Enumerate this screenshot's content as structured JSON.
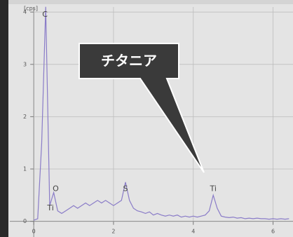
{
  "chart_data": {
    "type": "line",
    "y_label": "[cps]",
    "x": [
      0.0,
      0.1,
      0.2,
      0.3,
      0.4,
      0.5,
      0.6,
      0.7,
      0.8,
      0.9,
      1.0,
      1.1,
      1.2,
      1.3,
      1.4,
      1.5,
      1.6,
      1.7,
      1.8,
      1.9,
      2.0,
      2.1,
      2.2,
      2.3,
      2.4,
      2.5,
      2.6,
      2.7,
      2.8,
      2.9,
      3.0,
      3.1,
      3.2,
      3.3,
      3.4,
      3.5,
      3.6,
      3.7,
      3.8,
      3.9,
      4.0,
      4.1,
      4.2,
      4.3,
      4.4,
      4.5,
      4.6,
      4.7,
      4.8,
      4.9,
      5.0,
      5.1,
      5.2,
      5.3,
      5.4,
      5.5,
      5.6,
      5.7,
      5.8,
      5.9,
      6.0,
      6.1,
      6.2,
      6.3,
      6.4
    ],
    "series": [
      {
        "color": "#8a7cc8",
        "values": [
          0.02,
          0.05,
          1.5,
          4.1,
          0.3,
          0.55,
          0.2,
          0.15,
          0.2,
          0.25,
          0.3,
          0.25,
          0.3,
          0.35,
          0.3,
          0.35,
          0.4,
          0.35,
          0.4,
          0.35,
          0.3,
          0.35,
          0.4,
          0.75,
          0.4,
          0.25,
          0.2,
          0.18,
          0.15,
          0.18,
          0.12,
          0.15,
          0.12,
          0.1,
          0.12,
          0.1,
          0.12,
          0.08,
          0.1,
          0.08,
          0.1,
          0.08,
          0.1,
          0.12,
          0.2,
          0.5,
          0.25,
          0.1,
          0.08,
          0.07,
          0.08,
          0.06,
          0.07,
          0.05,
          0.06,
          0.05,
          0.06,
          0.05,
          0.05,
          0.04,
          0.05,
          0.04,
          0.05,
          0.04,
          0.05
        ]
      }
    ],
    "xlim": [
      -0.6,
      6.5
    ],
    "ylim": [
      -0.3,
      4.15
    ],
    "xticks": [
      0,
      2,
      4,
      6
    ],
    "yticks": [
      0,
      1,
      2,
      3,
      4
    ],
    "grid": true,
    "annotations": [
      "C",
      "O",
      "Ti",
      "S",
      "Ti"
    ],
    "callout": "チタニア"
  }
}
